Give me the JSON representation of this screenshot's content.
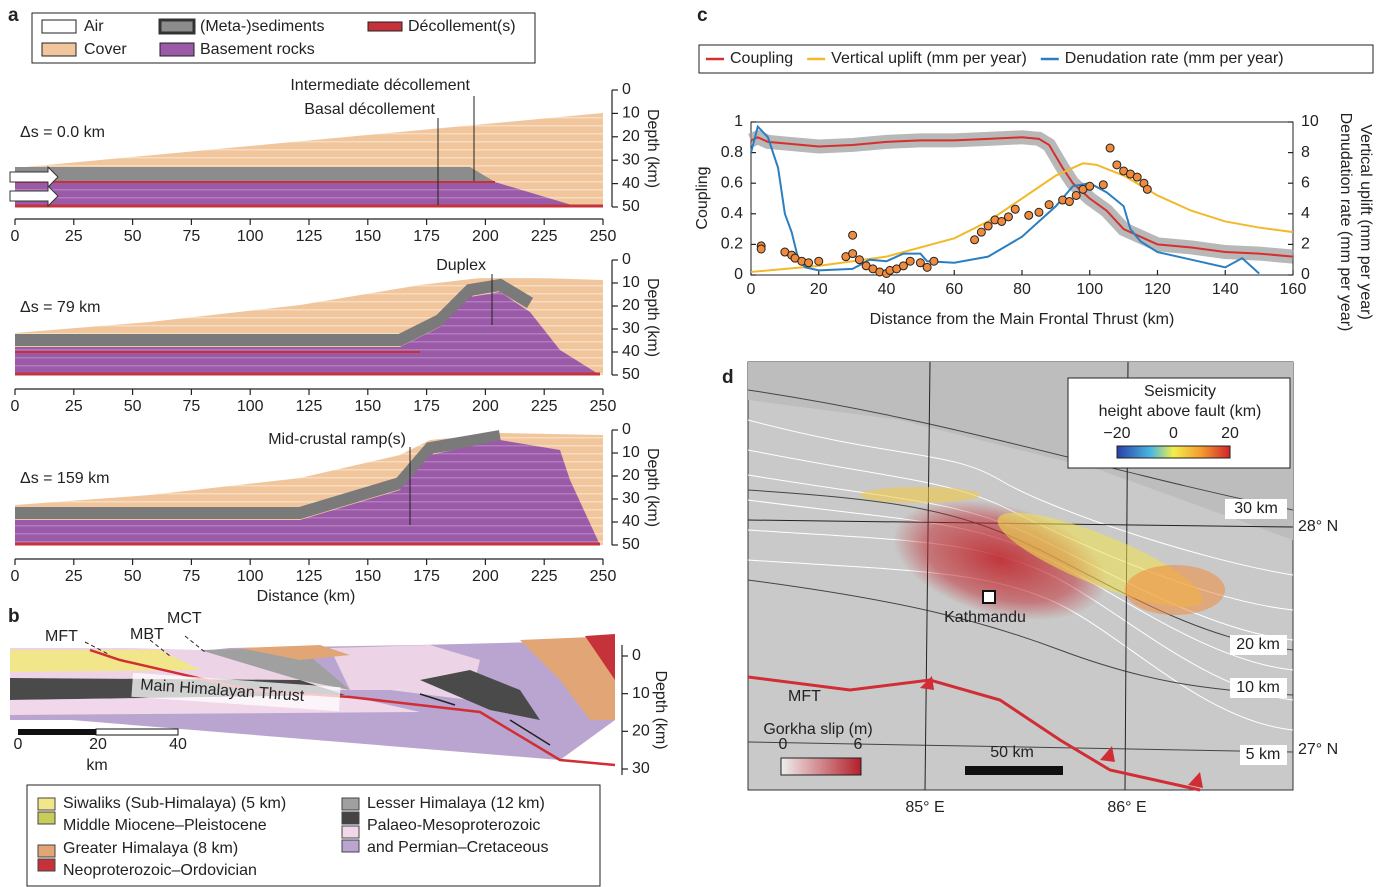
{
  "panel_labels": [
    "a",
    "b",
    "c",
    "d"
  ],
  "panel_a": {
    "legend": [
      "Air",
      "Cover",
      "(Meta-)sediments",
      "Basement rocks",
      "Décollement(s)"
    ],
    "sections": [
      {
        "shift": "Δs = 0.0 km",
        "annotations": [
          "Intermediate décollement",
          "Basal décollement"
        ]
      },
      {
        "shift": "Δs = 79 km",
        "annotations": [
          "Duplex"
        ]
      },
      {
        "shift": "Δs = 159 km",
        "annotations": [
          "Mid-crustal ramp(s)"
        ]
      }
    ],
    "xticks": [
      0,
      25,
      50,
      75,
      100,
      125,
      150,
      175,
      200,
      225,
      250
    ],
    "yticks": [
      0,
      10,
      20,
      30,
      40,
      50
    ],
    "ylabel": "Depth (km)",
    "xlabel": "Distance (km)"
  },
  "panel_b": {
    "faults": [
      "MFT",
      "MBT",
      "MCT"
    ],
    "thrust": "Main Himalayan Thrust",
    "yticks": [
      0,
      10,
      20,
      30
    ],
    "ylabel": "Depth (km)",
    "scale_ticks": [
      0,
      20,
      40
    ],
    "scale_unit": "km",
    "legend": [
      [
        "Siwaliks (Sub-Himalaya) (5 km)",
        "Middle Miocene–Pleistocene"
      ],
      [
        "Greater Himalaya (8 km)",
        "Neoproterozoic–Ordovician"
      ],
      [
        "Lesser Himalaya (12 km)",
        "Palaeo-Mesoproterozoic",
        "and Permian–Cretaceous"
      ]
    ]
  },
  "chart_data": {
    "type": "line",
    "xlabel": "Distance from the Main Frontal Thrust (km)",
    "ylabel": "Coupling",
    "y2label": [
      "Vertical uplift (mm per year)",
      "Denudation rate (mm per year)"
    ],
    "xlim": [
      0,
      160
    ],
    "xticks": [
      0,
      20,
      40,
      60,
      80,
      100,
      120,
      140,
      160
    ],
    "ylim": [
      0,
      1
    ],
    "yticks": [
      0,
      0.2,
      0.4,
      0.6,
      0.8,
      1
    ],
    "y2lim": [
      0,
      10
    ],
    "y2ticks": [
      0,
      2,
      4,
      6,
      8,
      10
    ],
    "series": [
      {
        "name": "Coupling",
        "color": "#d62f2f",
        "x": [
          0,
          2,
          5,
          10,
          20,
          30,
          40,
          50,
          60,
          70,
          80,
          85,
          88,
          92,
          95,
          100,
          105,
          110,
          115,
          120,
          130,
          140,
          150,
          160
        ],
        "values": [
          0.88,
          0.9,
          0.87,
          0.86,
          0.84,
          0.85,
          0.87,
          0.88,
          0.88,
          0.89,
          0.9,
          0.89,
          0.85,
          0.7,
          0.6,
          0.5,
          0.42,
          0.3,
          0.25,
          0.2,
          0.18,
          0.15,
          0.14,
          0.12
        ]
      },
      {
        "name": "Vertical uplift (mm per year)",
        "color": "#f2b92a",
        "axis": "y2",
        "x": [
          0,
          20,
          40,
          60,
          70,
          80,
          90,
          98,
          102,
          110,
          120,
          130,
          140,
          150,
          160
        ],
        "values": [
          0.2,
          0.6,
          1.2,
          2.4,
          3.5,
          5,
          6.5,
          7.3,
          7.2,
          6.5,
          5.2,
          4.2,
          3.5,
          3.1,
          2.8
        ]
      },
      {
        "name": "Denudation rate (mm per year)",
        "color": "#2a7fc1",
        "axis": "y2",
        "x": [
          0,
          2,
          5,
          8,
          10,
          12,
          14,
          16,
          20,
          30,
          35,
          40,
          45,
          50,
          52,
          60,
          70,
          80,
          90,
          95,
          100,
          105,
          110,
          112,
          115,
          120,
          130,
          140,
          145,
          150
        ],
        "values": [
          8,
          9.7,
          9,
          7,
          4,
          2.8,
          1,
          0.5,
          0.3,
          0.4,
          1,
          0.9,
          1.4,
          1.4,
          0.9,
          0.8,
          1.2,
          2.5,
          4.5,
          5.8,
          6,
          5.4,
          4.5,
          3,
          2.2,
          1.5,
          1,
          0.5,
          1.1,
          0.1
        ]
      },
      {
        "type": "scatter",
        "color": "#f08a3c",
        "axis": "y2",
        "x": [
          3,
          3,
          10,
          12,
          13,
          15,
          17,
          20,
          28,
          30,
          30,
          32,
          34,
          36,
          38,
          40,
          41,
          43,
          45,
          47,
          50,
          52,
          54,
          66,
          68,
          70,
          72,
          74,
          76,
          78,
          82,
          85,
          88,
          92,
          94,
          96,
          98,
          100,
          104,
          106,
          108,
          110,
          112,
          114,
          116,
          117
        ],
        "values": [
          1.9,
          1.7,
          1.5,
          1.3,
          1.1,
          0.9,
          0.8,
          0.9,
          1.2,
          1.4,
          2.6,
          1,
          0.6,
          0.4,
          0.2,
          0.1,
          0.3,
          0.4,
          0.6,
          0.9,
          0.8,
          0.5,
          0.9,
          2.3,
          2.8,
          3.2,
          3.6,
          3.5,
          3.8,
          4.3,
          3.9,
          4.1,
          4.6,
          4.9,
          4.8,
          5.2,
          5.6,
          5.8,
          5.9,
          8.3,
          7.2,
          6.8,
          6.6,
          6.4,
          6,
          5.6
        ]
      }
    ]
  },
  "panel_d": {
    "colorbar_title": [
      "Seismicity",
      "height above fault (km)"
    ],
    "colorbar_ticks": [
      {
        "value": -20,
        "label": "−20"
      },
      0,
      20
    ],
    "contours": [
      "30 km",
      "20 km",
      "10 km",
      "5 km"
    ],
    "latitudes": [
      "28° N",
      "27° N"
    ],
    "longitudes": [
      "85° E",
      "86° E"
    ],
    "city": "Kathmandu",
    "fault": "MFT",
    "slip_title": "Gorkha slip (m)",
    "slip_ticks": [
      0,
      6
    ],
    "scale": "50 km"
  }
}
